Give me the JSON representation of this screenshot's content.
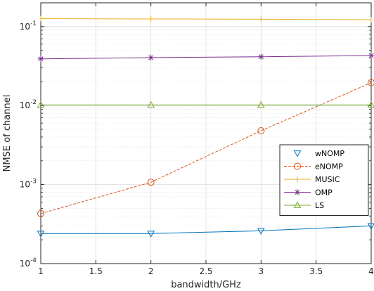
{
  "chart_data": {
    "type": "line",
    "xlabel": "bandwidth/GHz",
    "ylabel": "NMSE of channel",
    "xlim": [
      1,
      4
    ],
    "ylim": [
      0.0001,
      0.2
    ],
    "yscale": "log",
    "grid": true,
    "legend_position": "right-middle",
    "x_ticks": [
      "1",
      "1.5",
      "2",
      "2.5",
      "3",
      "3.5",
      "4"
    ],
    "y_ticks": [
      {
        "base": "10",
        "exp": "-4",
        "value": 0.0001
      },
      {
        "base": "10",
        "exp": "-3",
        "value": 0.001
      },
      {
        "base": "10",
        "exp": "-2",
        "value": 0.01
      },
      {
        "base": "10",
        "exp": "-1",
        "value": 0.1
      }
    ],
    "x": [
      1,
      2,
      3,
      4
    ],
    "series": [
      {
        "name": "wNOMP",
        "values": [
          0.00024,
          0.00024,
          0.00026,
          0.0003
        ],
        "color": "#0072BD",
        "marker": "triangle-down",
        "dash": "solid"
      },
      {
        "name": "eNOMP",
        "values": [
          0.00043,
          0.00107,
          0.0048,
          0.0195
        ],
        "color": "#D95319",
        "marker": "circle",
        "dash": "dashed"
      },
      {
        "name": "MUSIC",
        "values": [
          0.126,
          0.125,
          0.124,
          0.122
        ],
        "color": "#EDB120",
        "marker": "vline",
        "dash": "solid"
      },
      {
        "name": "OMP",
        "values": [
          0.039,
          0.0405,
          0.0415,
          0.043
        ],
        "color": "#7E2F8E",
        "marker": "star",
        "dash": "solid"
      },
      {
        "name": "LS",
        "values": [
          0.0102,
          0.0102,
          0.0102,
          0.0102
        ],
        "color": "#77AC30",
        "marker": "triangle-up",
        "dash": "solid"
      }
    ]
  }
}
